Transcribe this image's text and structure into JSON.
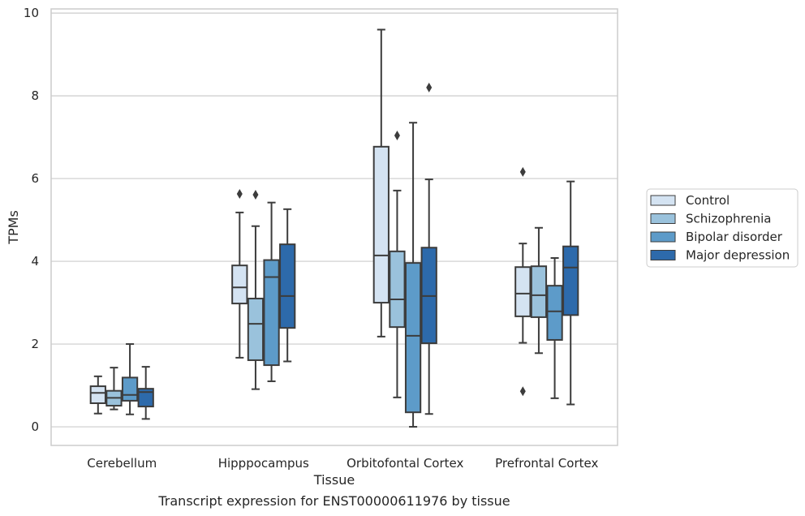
{
  "chart_data": {
    "type": "box",
    "title": "",
    "caption": "Transcript expression for ENST00000611976 by tissue",
    "xlabel": "Tissue",
    "ylabel": "TPMs",
    "ylim": [
      -0.45,
      10.1
    ],
    "yticks": [
      0,
      2,
      4,
      6,
      8,
      10
    ],
    "grid": "horizontal",
    "legend_position": "right",
    "categories": [
      "Cerebellum",
      "Hipppocampus",
      "Orbitofontal Cortex",
      "Prefrontal Cortex"
    ],
    "series": [
      {
        "name": "Control",
        "color": "#d4e3f2",
        "boxes": [
          {
            "whislo": 0.32,
            "q1": 0.57,
            "med": 0.82,
            "q3": 0.98,
            "whishi": 1.22,
            "fliers": []
          },
          {
            "whislo": 1.67,
            "q1": 2.98,
            "med": 3.37,
            "q3": 3.9,
            "whishi": 5.18,
            "fliers": [
              5.63
            ]
          },
          {
            "whislo": 2.18,
            "q1": 3.0,
            "med": 4.14,
            "q3": 6.77,
            "whishi": 9.6,
            "fliers": []
          },
          {
            "whislo": 2.03,
            "q1": 2.67,
            "med": 3.22,
            "q3": 3.86,
            "whishi": 4.43,
            "fliers": [
              6.16,
              0.86
            ]
          }
        ]
      },
      {
        "name": "Schizophrenia",
        "color": "#9ac2dc",
        "boxes": [
          {
            "whislo": 0.42,
            "q1": 0.51,
            "med": 0.7,
            "q3": 0.87,
            "whishi": 1.43,
            "fliers": []
          },
          {
            "whislo": 0.91,
            "q1": 1.61,
            "med": 2.49,
            "q3": 3.1,
            "whishi": 4.85,
            "fliers": [
              5.61
            ]
          },
          {
            "whislo": 0.71,
            "q1": 2.41,
            "med": 3.08,
            "q3": 4.24,
            "whishi": 5.71,
            "fliers": [
              7.04
            ]
          },
          {
            "whislo": 1.78,
            "q1": 2.65,
            "med": 3.18,
            "q3": 3.88,
            "whishi": 4.81,
            "fliers": []
          }
        ]
      },
      {
        "name": "Bipolar disorder",
        "color": "#5d9bc9",
        "boxes": [
          {
            "whislo": 0.3,
            "q1": 0.63,
            "med": 0.77,
            "q3": 1.19,
            "whishi": 2.0,
            "fliers": []
          },
          {
            "whislo": 1.1,
            "q1": 1.49,
            "med": 3.62,
            "q3": 4.03,
            "whishi": 5.42,
            "fliers": []
          },
          {
            "whislo": 0.0,
            "q1": 0.35,
            "med": 2.2,
            "q3": 3.96,
            "whishi": 7.35,
            "fliers": []
          },
          {
            "whislo": 0.69,
            "q1": 2.1,
            "med": 2.79,
            "q3": 3.41,
            "whishi": 4.08,
            "fliers": []
          }
        ]
      },
      {
        "name": "Major depression",
        "color": "#2d6aab",
        "boxes": [
          {
            "whislo": 0.19,
            "q1": 0.49,
            "med": 0.84,
            "q3": 0.92,
            "whishi": 1.45,
            "fliers": []
          },
          {
            "whislo": 1.58,
            "q1": 2.39,
            "med": 3.16,
            "q3": 4.41,
            "whishi": 5.26,
            "fliers": []
          },
          {
            "whislo": 0.31,
            "q1": 2.02,
            "med": 3.16,
            "q3": 4.33,
            "whishi": 5.98,
            "fliers": [
              8.2
            ]
          },
          {
            "whislo": 0.54,
            "q1": 2.7,
            "med": 3.85,
            "q3": 4.36,
            "whishi": 5.93,
            "fliers": []
          }
        ]
      }
    ]
  }
}
